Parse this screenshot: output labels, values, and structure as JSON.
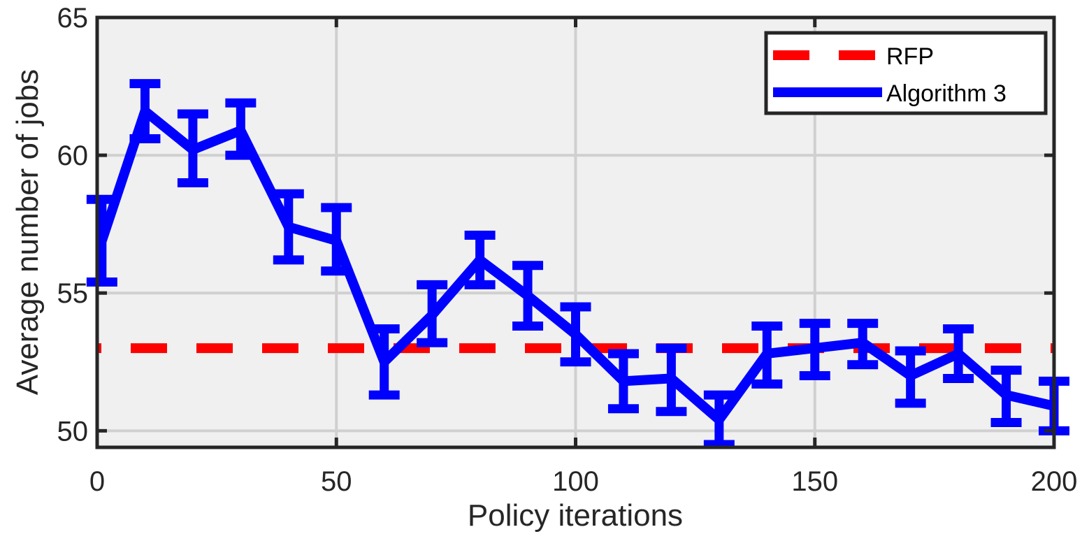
{
  "chart_data": {
    "type": "line",
    "title": "",
    "xlabel": "Policy iterations",
    "ylabel": "Average number of jobs",
    "xlim": [
      0,
      200
    ],
    "ylim": [
      49.4,
      65
    ],
    "xticks": [
      0,
      50,
      100,
      150,
      200
    ],
    "yticks": [
      50,
      55,
      60,
      65
    ],
    "grid": true,
    "legend_position": "top-right",
    "series": [
      {
        "name": "RFP",
        "style": "dashed",
        "color": "#ff0000",
        "x": [
          0,
          200
        ],
        "y": [
          53.0,
          53.0
        ]
      },
      {
        "name": "Algorithm 3",
        "style": "solid",
        "color": "#0000ff",
        "x": [
          1,
          10,
          20,
          30,
          40,
          50,
          60,
          70,
          80,
          90,
          100,
          110,
          120,
          130,
          140,
          150,
          160,
          170,
          180,
          190,
          200
        ],
        "y": [
          56.9,
          61.6,
          60.2,
          60.9,
          57.4,
          56.9,
          52.5,
          54.2,
          56.2,
          54.9,
          53.5,
          51.8,
          51.9,
          50.4,
          52.8,
          53.0,
          53.2,
          52.0,
          52.8,
          51.3,
          50.9
        ],
        "err_low": [
          55.4,
          60.6,
          59.0,
          60.0,
          56.2,
          55.8,
          51.3,
          53.2,
          55.3,
          53.8,
          52.5,
          50.8,
          50.7,
          49.5,
          51.7,
          52.0,
          52.4,
          51.0,
          51.9,
          50.3,
          50.0
        ],
        "err_high": [
          58.4,
          62.6,
          61.5,
          61.9,
          58.6,
          58.1,
          53.7,
          55.3,
          57.1,
          56.0,
          54.5,
          52.8,
          53.0,
          51.3,
          53.8,
          53.9,
          53.9,
          52.9,
          53.7,
          52.2,
          51.8
        ]
      }
    ]
  },
  "colors": {
    "plot_background": "#f0f0f0",
    "axes": "#262626",
    "grid": "#d0d0d0"
  }
}
